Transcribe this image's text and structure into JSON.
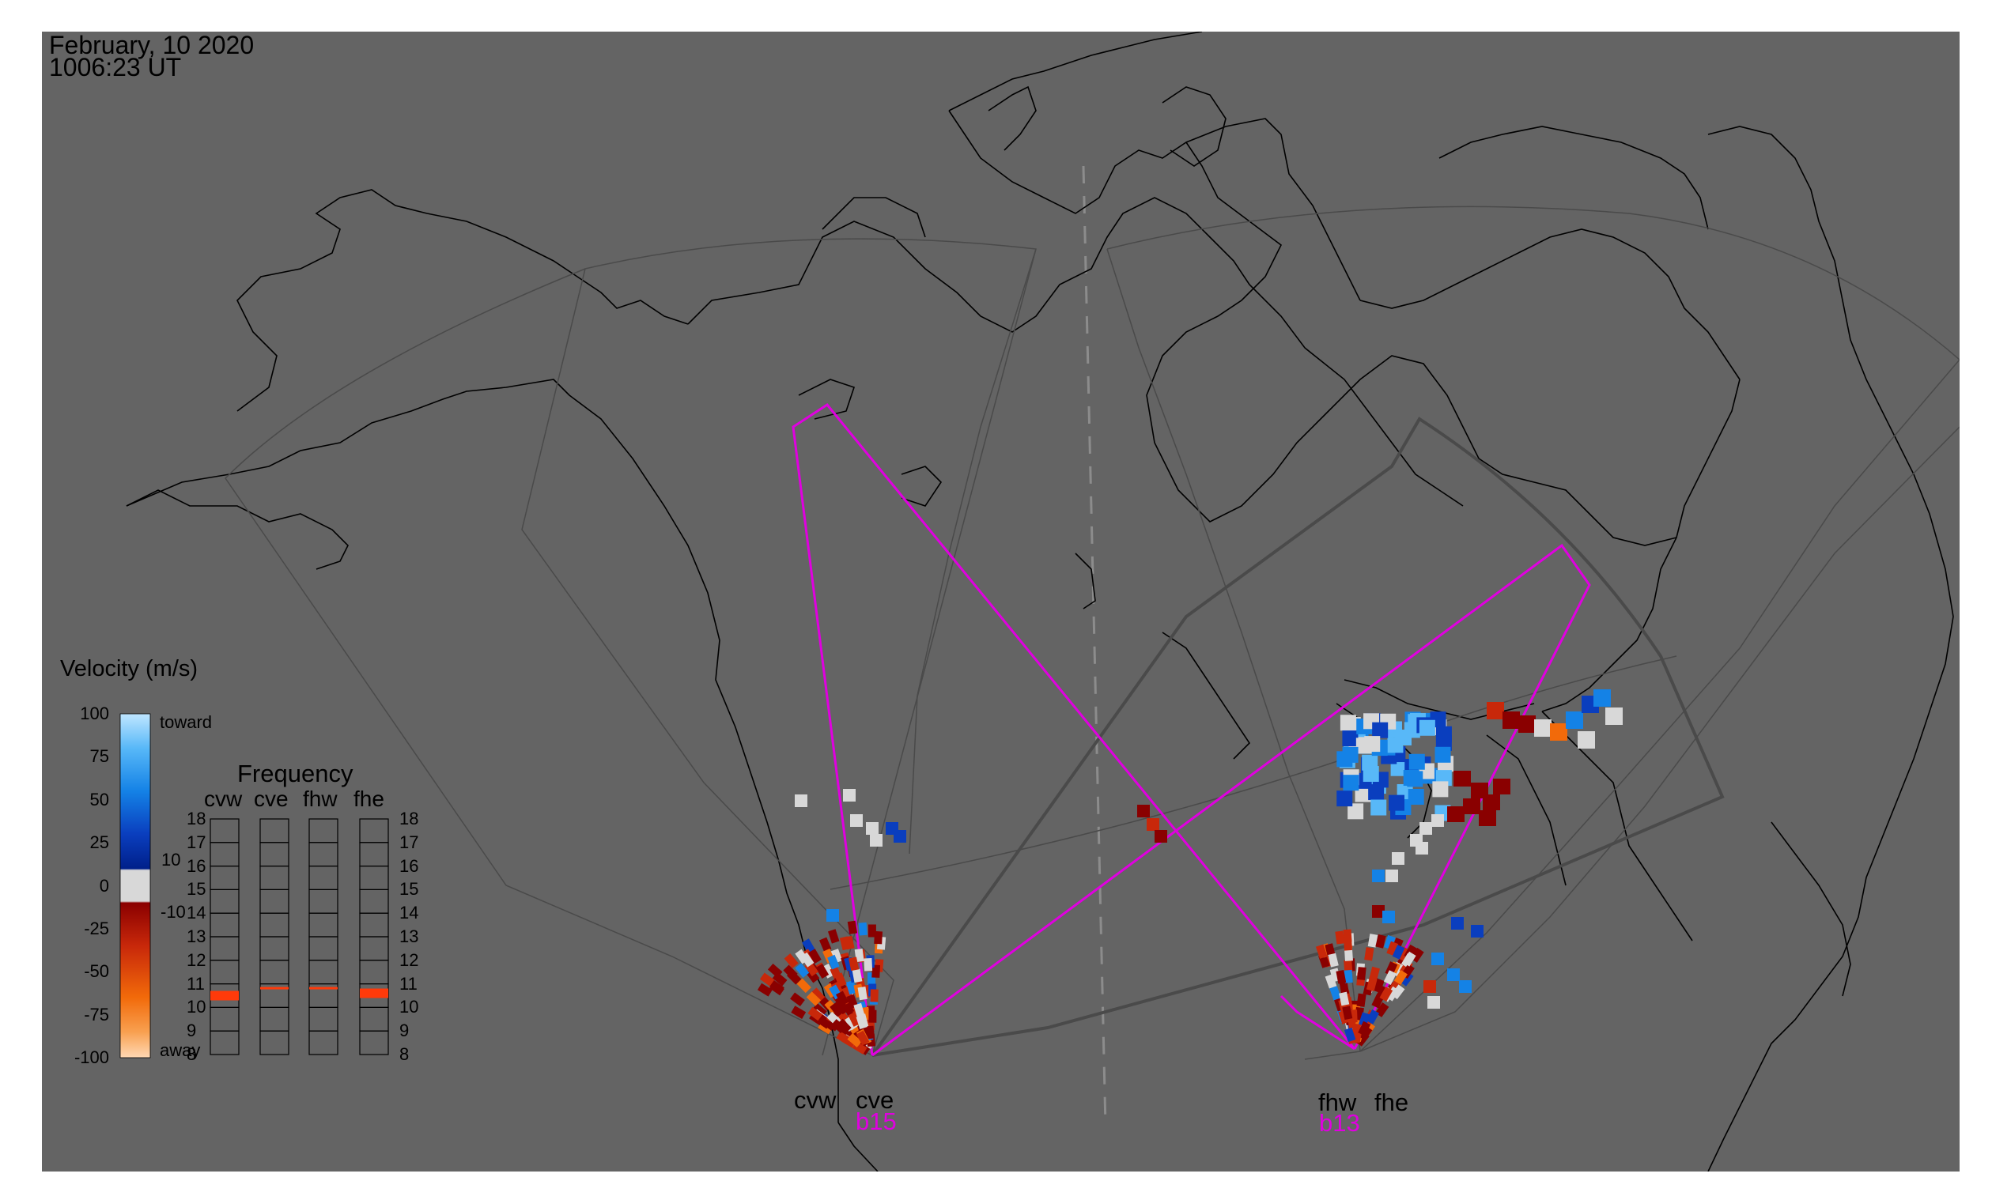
{
  "header": {
    "date": "February, 10 2020",
    "time": "1006:23 UT"
  },
  "colors": {
    "background": "#646464",
    "page": "#ffffff",
    "coastline": "#000000",
    "fov_outline": "#4a4a4a",
    "beam_outline": "#e000e0",
    "beam_label": "#e000e0",
    "midline": "#8c8c8c",
    "freq_marker": "#ff3a0a"
  },
  "velocity_legend": {
    "title": "Velocity (m/s)",
    "toward_label": "toward",
    "away_label": "away",
    "ticks": [
      "100",
      "75",
      "50",
      "25",
      "0",
      "-25",
      "-50",
      "-75",
      "-100"
    ],
    "inner_ticks": [
      "10",
      "-10"
    ],
    "scale": {
      "min": -100,
      "max": 100,
      "stops": [
        {
          "v": 100,
          "color": "#bfe6ff"
        },
        {
          "v": 80,
          "color": "#58b8f8"
        },
        {
          "v": 55,
          "color": "#1482e6"
        },
        {
          "v": 30,
          "color": "#0a3ebe"
        },
        {
          "v": 10,
          "color": "#00208a"
        },
        {
          "v": 9,
          "color": "#d8d8d8"
        },
        {
          "v": -9,
          "color": "#d8d8d8"
        },
        {
          "v": -10,
          "color": "#8a0000"
        },
        {
          "v": -35,
          "color": "#c8280a"
        },
        {
          "v": -65,
          "color": "#f26a0a"
        },
        {
          "v": -85,
          "color": "#f8a050"
        },
        {
          "v": -100,
          "color": "#ffd8b4"
        }
      ]
    }
  },
  "frequency_panel": {
    "title": "Frequency",
    "columns": [
      "cvw",
      "cve",
      "fhw",
      "fhe"
    ],
    "rows": [
      "18",
      "17",
      "16",
      "15",
      "14",
      "13",
      "12",
      "11",
      "10",
      "9",
      "8"
    ],
    "active_mhz": [
      10.5,
      10.8,
      10.8,
      10.6
    ]
  },
  "radars": [
    {
      "names": [
        "cvw",
        "cve"
      ],
      "beam": "b15"
    },
    {
      "names": [
        "fhw",
        "fhe"
      ],
      "beam": "b13"
    }
  ]
}
